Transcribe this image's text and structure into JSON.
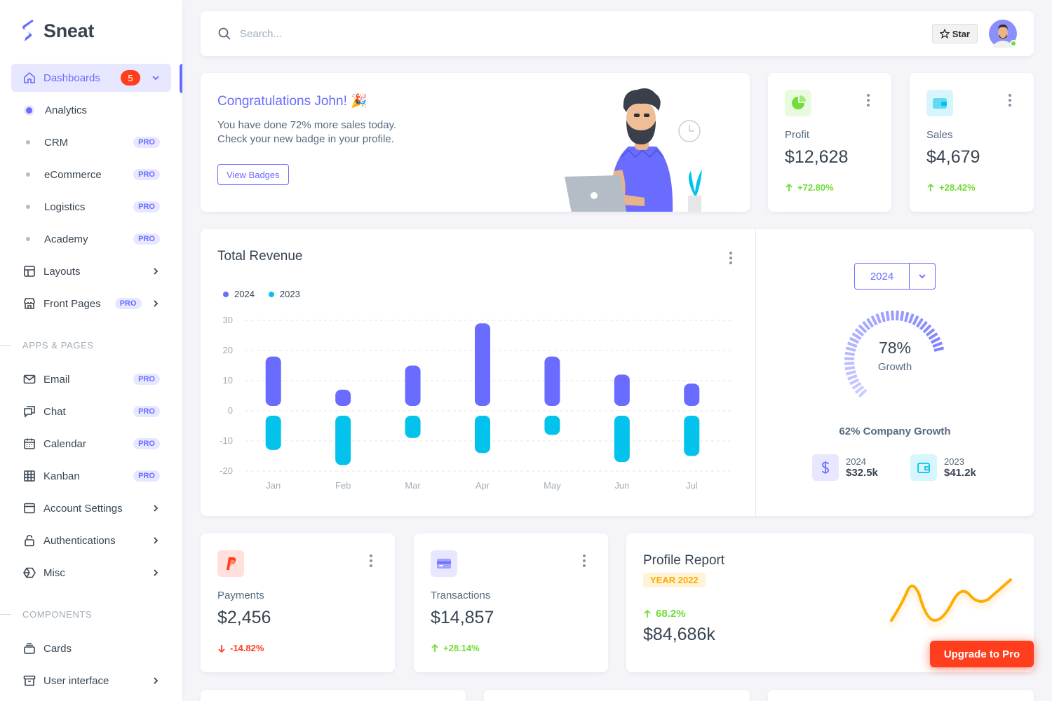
{
  "brand": {
    "name": "Sneat"
  },
  "search": {
    "placeholder": "Search..."
  },
  "navbar": {
    "star_label": "Star"
  },
  "sidebar": {
    "dashboards": {
      "label": "Dashboards",
      "badge": "5"
    },
    "sub_items": [
      {
        "label": "Analytics"
      },
      {
        "label": "CRM",
        "pro": "PRO"
      },
      {
        "label": "eCommerce",
        "pro": "PRO"
      },
      {
        "label": "Logistics",
        "pro": "PRO"
      },
      {
        "label": "Academy",
        "pro": "PRO"
      }
    ],
    "layouts": {
      "label": "Layouts"
    },
    "front_pages": {
      "label": "Front Pages",
      "pro": "PRO"
    },
    "section_apps": "APPS & PAGES",
    "apps": [
      {
        "label": "Email",
        "pro": "PRO"
      },
      {
        "label": "Chat",
        "pro": "PRO"
      },
      {
        "label": "Calendar",
        "pro": "PRO"
      },
      {
        "label": "Kanban",
        "pro": "PRO"
      },
      {
        "label": "Account Settings"
      },
      {
        "label": "Authentications"
      },
      {
        "label": "Misc"
      }
    ],
    "section_components": "COMPONENTS",
    "components": [
      {
        "label": "Cards"
      },
      {
        "label": "User interface"
      }
    ]
  },
  "congrats": {
    "title": "Congratulations John! 🎉",
    "line1": "You have done 72% more sales today.",
    "line2": "Check your new badge in your profile.",
    "button": "View Badges"
  },
  "profit": {
    "label": "Profit",
    "value": "$12,628",
    "change": "+72.80%"
  },
  "sales": {
    "label": "Sales",
    "value": "$4,679",
    "change": "+28.42%"
  },
  "revenue": {
    "title": "Total Revenue"
  },
  "growth": {
    "year": "2024",
    "percent": "78%",
    "percent_value": 78,
    "label": "Growth",
    "company": "62% Company Growth",
    "y2024": {
      "label": "2024",
      "value": "$32.5k"
    },
    "y2023": {
      "label": "2023",
      "value": "$41.2k"
    }
  },
  "payments": {
    "label": "Payments",
    "value": "$2,456",
    "change": "-14.82%"
  },
  "transactions": {
    "label": "Transactions",
    "value": "$14,857",
    "change": "+28.14%"
  },
  "profile_report": {
    "title": "Profile Report",
    "year": "YEAR 2022",
    "change": "68.2%",
    "value": "$84,686k"
  },
  "upgrade": {
    "label": "Upgrade to Pro"
  },
  "colors": {
    "primary": "#696cff",
    "info": "#03c3ec",
    "success": "#71dd37",
    "danger": "#ff3e1d",
    "warning": "#ffab00"
  },
  "chart_data": {
    "type": "bar",
    "title": "Total Revenue",
    "categories": [
      "Jan",
      "Feb",
      "Mar",
      "Apr",
      "May",
      "Jun",
      "Jul"
    ],
    "series": [
      {
        "name": "2024",
        "values": [
          18,
          7,
          15,
          29,
          18,
          12,
          9
        ]
      },
      {
        "name": "2023",
        "values": [
          -13,
          -18,
          -9,
          -14,
          -8,
          -17,
          -15
        ]
      }
    ],
    "y_ticks": [
      30,
      20,
      10,
      0,
      -10,
      -20
    ],
    "ylim": [
      -20,
      30
    ],
    "grid": true,
    "legend": "top-left"
  }
}
